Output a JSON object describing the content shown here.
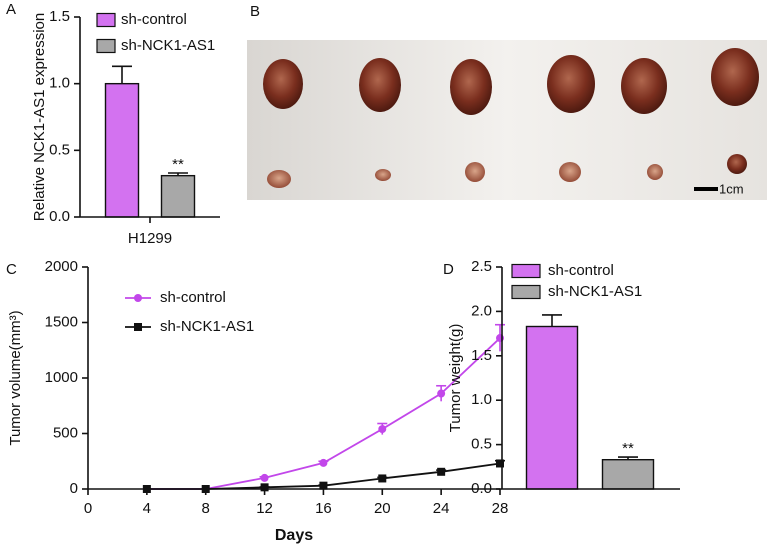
{
  "panels": [
    "A",
    "B",
    "C",
    "D"
  ],
  "scale_bar_label": "1cm",
  "chart_data": [
    {
      "type": "bar",
      "ylabel": "Relative NCK1-AS1 expression",
      "categories": [
        "H1299"
      ],
      "ylim": [
        0,
        1.5
      ],
      "yticks": [
        {
          "value": 0,
          "label": "0.0"
        },
        0.5,
        {
          "value": 1,
          "label": "1.0"
        },
        1.5
      ],
      "series": [
        {
          "name": "sh-control",
          "color": "#d372f0",
          "values": [
            1.0
          ],
          "errors": [
            0.13
          ]
        },
        {
          "name": "sh-NCK1-AS1",
          "color": "#a8a8a8",
          "values": [
            0.31
          ],
          "errors": [
            0.02
          ]
        }
      ],
      "annotation": "**"
    },
    {
      "type": "line",
      "xlabel": "Days",
      "ylabel": "Tumor volume(mm³)",
      "x": [
        4,
        8,
        12,
        16,
        20,
        24,
        28
      ],
      "xlim": [
        0,
        28
      ],
      "xticks": [
        0,
        4,
        8,
        12,
        16,
        20,
        24,
        28
      ],
      "ylim": [
        0,
        2000
      ],
      "yticks": [
        0,
        500,
        1000,
        1500,
        2000
      ],
      "series": [
        {
          "name": "sh-control",
          "color": "#c247ea",
          "marker": "circle",
          "values": [
            0,
            0,
            100,
            235,
            540,
            860,
            1360
          ],
          "errors": [
            0,
            0,
            10,
            15,
            50,
            70,
            120
          ]
        },
        {
          "name": "sh-NCK1-AS1",
          "color": "#111111",
          "marker": "square",
          "values": [
            0,
            0,
            15,
            30,
            95,
            155,
            230
          ],
          "errors": [
            0,
            0,
            3,
            5,
            10,
            15,
            25
          ]
        }
      ]
    },
    {
      "type": "bar",
      "ylabel": "Tumor weight(g)",
      "ylim": [
        0,
        2.5
      ],
      "yticks": [
        {
          "value": 0,
          "label": "0.0"
        },
        0.5,
        {
          "value": 1,
          "label": "1.0"
        },
        1.5,
        {
          "value": 2,
          "label": "2.0"
        },
        2.5
      ],
      "series": [
        {
          "name": "sh-control",
          "color": "#d372f0",
          "values": [
            1.83
          ],
          "errors": [
            0.13
          ]
        },
        {
          "name": "sh-NCK1-AS1",
          "color": "#a8a8a8",
          "values": [
            0.33
          ],
          "errors": [
            0.03
          ]
        }
      ],
      "annotation": "**"
    }
  ]
}
